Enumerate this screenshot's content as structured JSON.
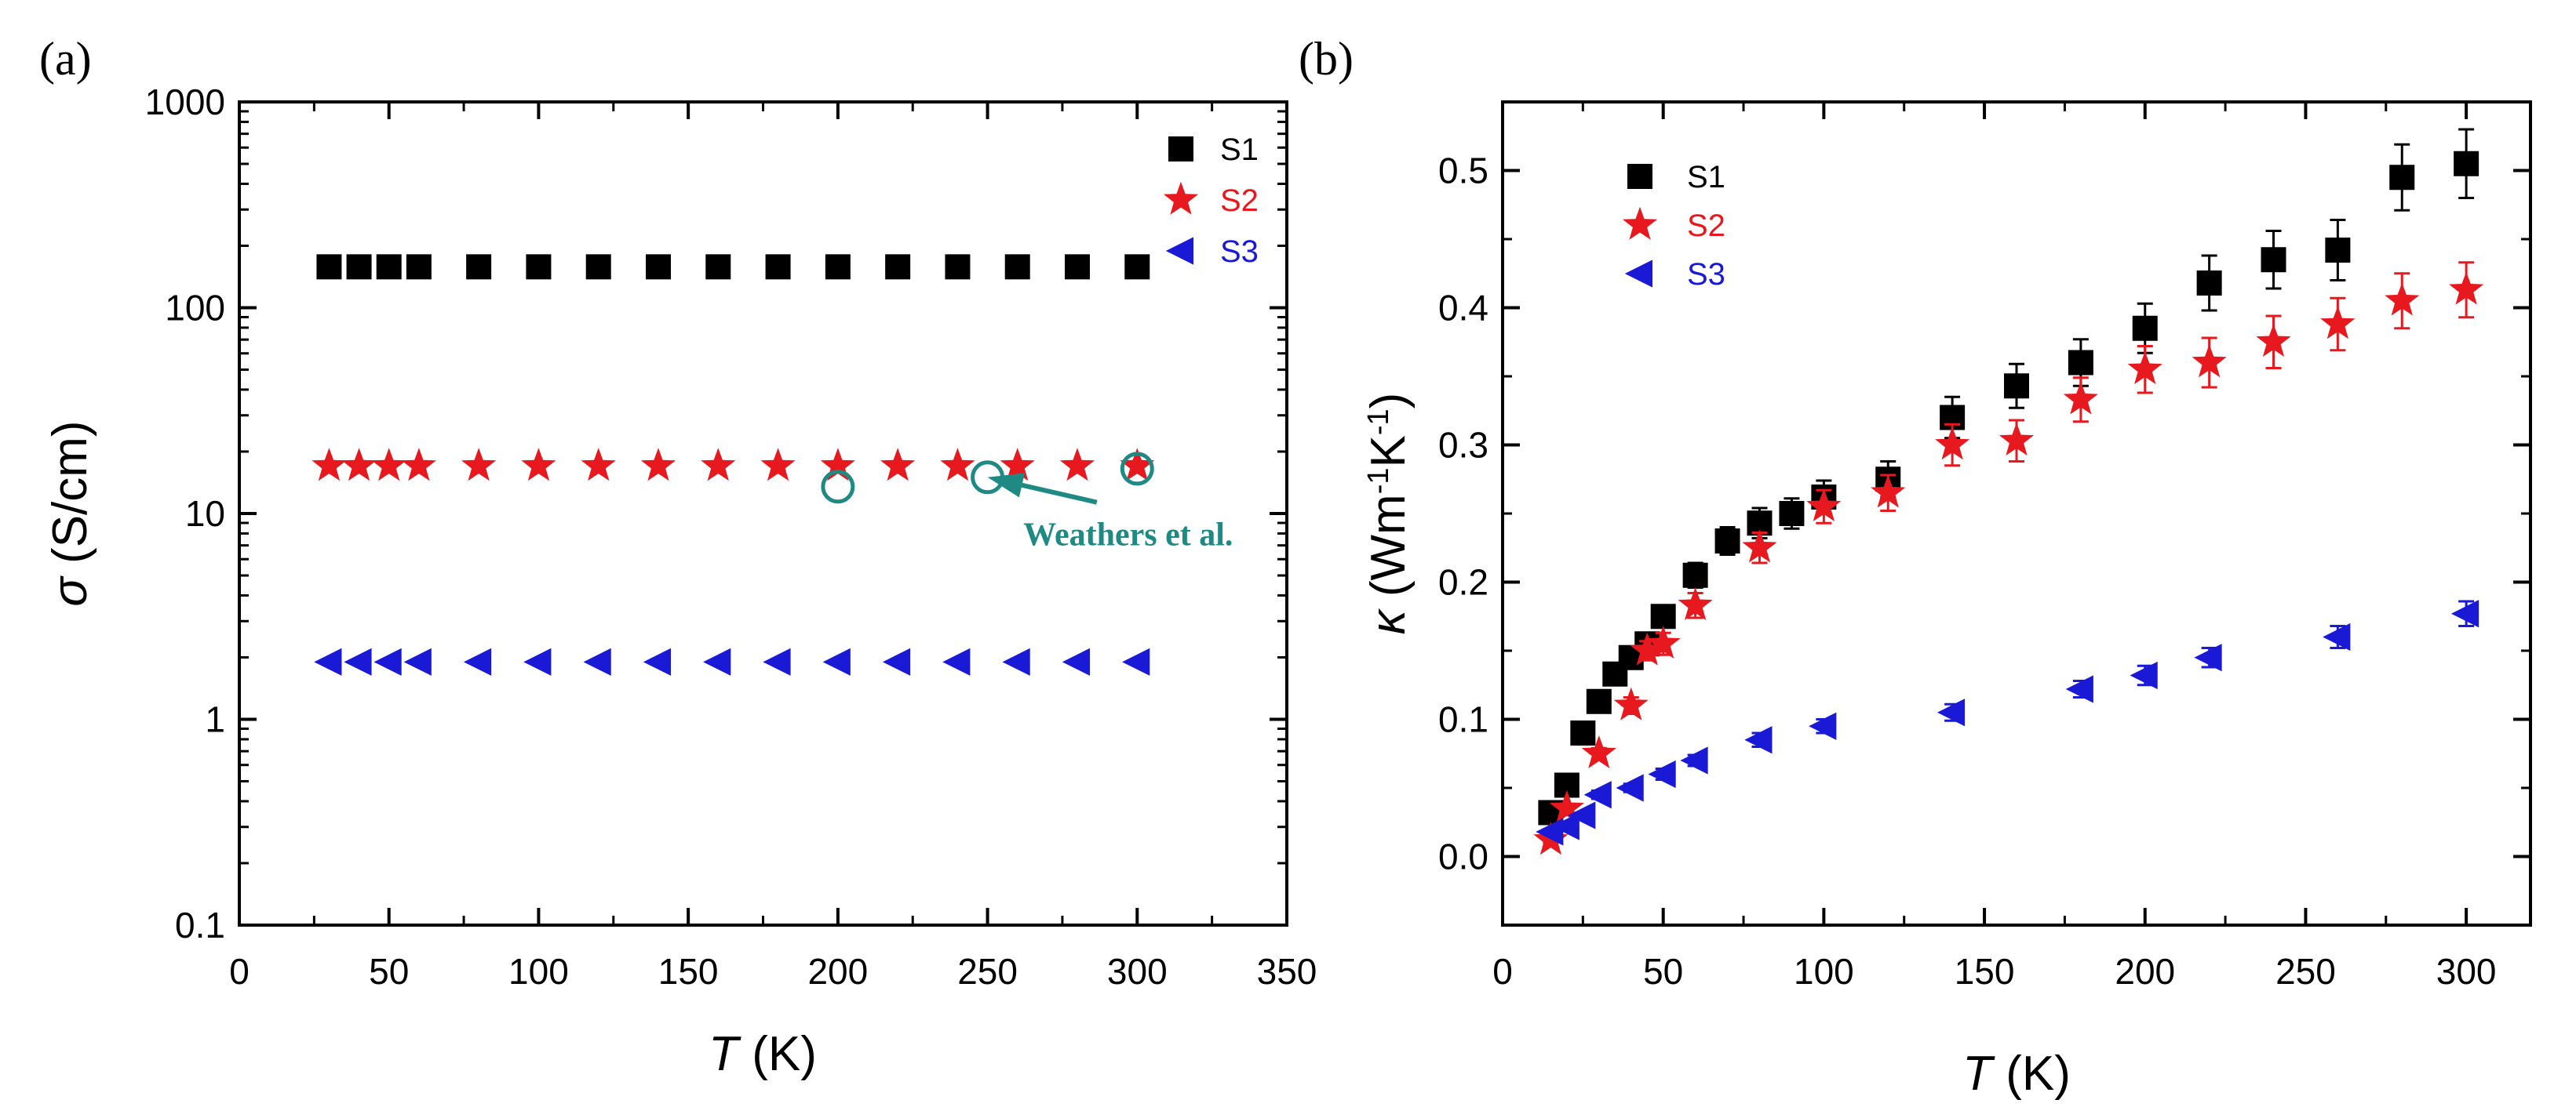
{
  "colors": {
    "S1": "#000000",
    "S2": "#e8191e",
    "S3": "#1a1ad6",
    "literature": "#1f8a84"
  },
  "chart_data": [
    {
      "panel": "(a)",
      "type": "scatter",
      "xlabel_symbol": "T",
      "xlabel_unit": " (K)",
      "ylabel_symbol": "σ",
      "ylabel_unit": " (S/cm)",
      "xlim": [
        0,
        350
      ],
      "ylim": [
        0.1,
        1000
      ],
      "yscale": "log",
      "xticks": [
        0,
        50,
        100,
        150,
        200,
        250,
        300,
        350
      ],
      "yticks": [
        0.1,
        1,
        10,
        100,
        1000
      ],
      "ytick_labels": [
        "0.1",
        "1",
        "10",
        "100",
        "1000"
      ],
      "legend": [
        "S1",
        "S2",
        "S3"
      ],
      "legend_position": "top-right",
      "series": [
        {
          "name": "S1",
          "marker": "square",
          "x": [
            30,
            40,
            50,
            60,
            80,
            100,
            120,
            140,
            160,
            180,
            200,
            220,
            240,
            260,
            280,
            300
          ],
          "y": [
            158,
            158,
            158,
            158,
            158,
            158,
            158,
            158,
            158,
            158,
            158,
            158,
            158,
            158,
            158,
            158
          ]
        },
        {
          "name": "S2",
          "marker": "star",
          "x": [
            30,
            40,
            50,
            60,
            80,
            100,
            120,
            140,
            160,
            180,
            200,
            220,
            240,
            260,
            280,
            300
          ],
          "y": [
            17,
            17,
            17,
            17,
            17,
            17,
            17,
            17,
            17,
            17,
            17,
            17,
            17,
            17,
            17,
            17
          ]
        },
        {
          "name": "S3",
          "marker": "triangle-left",
          "x": [
            30,
            40,
            50,
            60,
            80,
            100,
            120,
            140,
            160,
            180,
            200,
            220,
            240,
            260,
            280,
            300
          ],
          "y": [
            1.9,
            1.9,
            1.9,
            1.9,
            1.9,
            1.9,
            1.9,
            1.9,
            1.9,
            1.9,
            1.9,
            1.9,
            1.9,
            1.9,
            1.9,
            1.9
          ]
        },
        {
          "name": "Weathers et al.",
          "marker": "open-circle",
          "x": [
            200,
            250,
            300
          ],
          "y": [
            13.5,
            15,
            16.5
          ]
        }
      ],
      "annotation": {
        "text": "Weathers et al.",
        "points_to": [
          250,
          15
        ],
        "text_at": [
          297,
          7
        ]
      }
    },
    {
      "panel": "(b)",
      "type": "scatter",
      "xlabel_symbol": "T",
      "xlabel_unit": " (K)",
      "ylabel_symbol": "κ",
      "ylabel_unit": " (Wm",
      "ylabel_exp1": "-1",
      "ylabel_mid": "K",
      "ylabel_exp2": "-1",
      "ylabel_close": ")",
      "xlim": [
        0,
        320
      ],
      "ylim": [
        -0.05,
        0.55
      ],
      "xticks": [
        0,
        50,
        100,
        150,
        200,
        250,
        300
      ],
      "yticks": [
        0.0,
        0.1,
        0.2,
        0.3,
        0.4,
        0.5
      ],
      "ytick_labels": [
        "0.0",
        "0.1",
        "0.2",
        "0.3",
        "0.4",
        "0.5"
      ],
      "legend": [
        "S1",
        "S2",
        "S3"
      ],
      "legend_position": "top-left",
      "series": [
        {
          "name": "S1",
          "marker": "square",
          "x": [
            15,
            20,
            25,
            30,
            35,
            40,
            45,
            50,
            60,
            70,
            80,
            90,
            100,
            120,
            140,
            160,
            180,
            200,
            220,
            240,
            260,
            280,
            300
          ],
          "y": [
            0.032,
            0.052,
            0.09,
            0.113,
            0.133,
            0.145,
            0.155,
            0.175,
            0.205,
            0.23,
            0.243,
            0.25,
            0.262,
            0.275,
            0.32,
            0.343,
            0.36,
            0.385,
            0.418,
            0.435,
            0.442,
            0.495,
            0.505
          ],
          "err": [
            0.004,
            0.004,
            0.005,
            0.006,
            0.006,
            0.007,
            0.007,
            0.008,
            0.009,
            0.01,
            0.011,
            0.011,
            0.012,
            0.013,
            0.015,
            0.016,
            0.017,
            0.018,
            0.02,
            0.021,
            0.022,
            0.024,
            0.025
          ]
        },
        {
          "name": "S2",
          "marker": "star",
          "x": [
            15,
            20,
            30,
            40,
            45,
            50,
            60,
            80,
            100,
            120,
            140,
            160,
            180,
            200,
            220,
            240,
            260,
            280,
            300
          ],
          "y": [
            0.012,
            0.035,
            0.075,
            0.11,
            0.15,
            0.155,
            0.183,
            0.225,
            0.255,
            0.265,
            0.3,
            0.303,
            0.333,
            0.355,
            0.36,
            0.375,
            0.388,
            0.405,
            0.413
          ],
          "err": [
            0.002,
            0.003,
            0.004,
            0.006,
            0.007,
            0.008,
            0.009,
            0.011,
            0.012,
            0.013,
            0.015,
            0.015,
            0.016,
            0.017,
            0.018,
            0.019,
            0.019,
            0.02,
            0.02
          ]
        },
        {
          "name": "S3",
          "marker": "triangle-left",
          "x": [
            15,
            20,
            25,
            30,
            40,
            50,
            60,
            80,
            100,
            140,
            180,
            200,
            220,
            260,
            300
          ],
          "y": [
            0.018,
            0.022,
            0.03,
            0.045,
            0.05,
            0.06,
            0.07,
            0.085,
            0.095,
            0.105,
            0.122,
            0.132,
            0.145,
            0.16,
            0.177
          ],
          "err": [
            0.002,
            0.002,
            0.002,
            0.003,
            0.003,
            0.004,
            0.004,
            0.005,
            0.005,
            0.006,
            0.006,
            0.007,
            0.007,
            0.008,
            0.009
          ]
        }
      ]
    }
  ]
}
